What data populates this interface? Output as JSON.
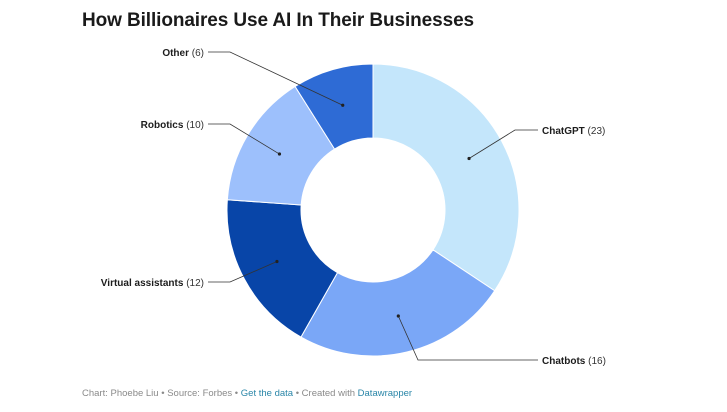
{
  "title": "How Billionaires Use AI In Their Businesses",
  "chart_data": {
    "type": "pie",
    "variant": "donut",
    "title": "How Billionaires Use AI In Their Businesses",
    "categories": [
      "ChatGPT",
      "Chatbots",
      "Virtual assistants",
      "Robotics",
      "Other"
    ],
    "values": [
      23,
      16,
      12,
      10,
      6
    ],
    "value_labels": [
      "(23)",
      "(16)",
      "(12)",
      "(10)",
      "(6)"
    ],
    "colors": [
      "#c4e6fb",
      "#7aa7f7",
      "#0845a8",
      "#9dc0fc",
      "#2e6bd5"
    ]
  },
  "footer": {
    "credit": "Chart: Phoebe Liu",
    "sep1": " • ",
    "source": "Source: Forbes",
    "sep2": " • ",
    "get_data": "Get the data",
    "sep3": " • ",
    "created_with": "Created with ",
    "tool": "Datawrapper"
  }
}
